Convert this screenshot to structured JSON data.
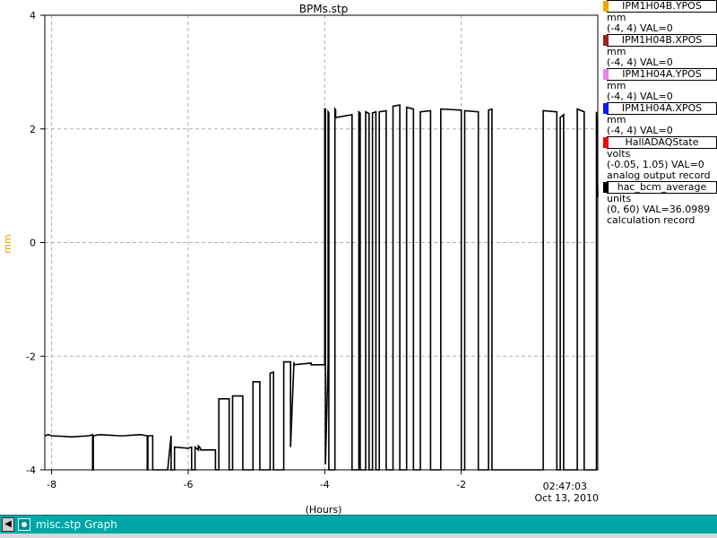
{
  "chart_data": {
    "type": "line",
    "title": "BPMs.stp",
    "xlabel": "(Hours)",
    "ylabel": "mm",
    "xlim": [
      -8.1,
      0
    ],
    "ylim": [
      -4,
      4
    ],
    "x_ticks": [
      "-8",
      "-6",
      "-4",
      "-2"
    ],
    "x_tick_values": [
      -8,
      -6,
      -4,
      -2
    ],
    "y_ticks": [
      "4",
      "2",
      "0",
      "-2",
      "-4"
    ],
    "y_tick_values": [
      4,
      2,
      0,
      -2,
      -4
    ],
    "end_time": "02:47:03",
    "end_date": "Oct 13, 2010",
    "grid": true,
    "series": [
      {
        "name": "hac_bcm_average",
        "color": "#000000",
        "x": [
          -8.1,
          -8.05,
          -8.0,
          -7.7,
          -7.45,
          -7.4,
          -7.4,
          -7.39,
          -7.39,
          -7.3,
          -7.0,
          -6.95,
          -6.7,
          -6.6,
          -6.6,
          -6.59,
          -6.59,
          -6.52,
          -6.52,
          -6.3,
          -6.25,
          -6.25,
          -6.2,
          -6.2,
          -6.0,
          -5.95,
          -5.95,
          -5.9,
          -5.9,
          -5.85,
          -5.85,
          -5.82,
          -5.82,
          -5.6,
          -5.6,
          -5.55,
          -5.55,
          -5.4,
          -5.4,
          -5.35,
          -5.35,
          -5.2,
          -5.2,
          -5.05,
          -5.05,
          -4.95,
          -4.95,
          -4.8,
          -4.8,
          -4.75,
          -4.75,
          -4.6,
          -4.6,
          -4.5,
          -4.5,
          -4.45,
          -4.45,
          -4.2,
          -4.2,
          -4.0,
          -4.0,
          -3.99,
          -3.99,
          -3.95,
          -3.95,
          -3.94,
          -3.94,
          -3.85,
          -3.85,
          -3.84,
          -3.84,
          -3.6,
          -3.6,
          -3.5,
          -3.5,
          -3.48,
          -3.48,
          -3.4,
          -3.4,
          -3.35,
          -3.35,
          -3.3,
          -3.3,
          -3.25,
          -3.25,
          -3.2,
          -3.2,
          -3.1,
          -3.1,
          -3.0,
          -3.0,
          -2.9,
          -2.9,
          -2.8,
          -2.8,
          -2.7,
          -2.7,
          -2.6,
          -2.6,
          -2.45,
          -2.45,
          -2.3,
          -2.3,
          -2.0,
          -2.0,
          -1.95,
          -1.95,
          -1.75,
          -1.75,
          -1.6,
          -1.6,
          -1.55,
          -1.55,
          -0.8,
          -0.8,
          -0.6,
          -0.6,
          -0.55,
          -0.55,
          -0.5,
          -0.5,
          -0.3,
          -0.3,
          -0.2,
          -0.2,
          -0.02,
          -0.02,
          0.0
        ],
        "y": [
          -3.4,
          -3.38,
          -3.4,
          -3.42,
          -3.4,
          -3.38,
          -4.0,
          -4.0,
          -3.4,
          -3.38,
          -3.4,
          -3.4,
          -3.38,
          -3.4,
          -4.0,
          -4.0,
          -3.4,
          -3.4,
          -4.0,
          -4.0,
          -3.4,
          -4.0,
          -4.0,
          -3.6,
          -3.62,
          -3.6,
          -4.0,
          -4.0,
          -3.6,
          -3.65,
          -3.58,
          -3.62,
          -3.65,
          -3.65,
          -4.0,
          -4.0,
          -2.75,
          -2.75,
          -4.0,
          -4.0,
          -2.7,
          -2.7,
          -4.0,
          -4.0,
          -2.45,
          -2.45,
          -4.0,
          -4.0,
          -2.3,
          -2.28,
          -4.0,
          -4.0,
          -2.1,
          -2.1,
          -3.6,
          -2.1,
          -2.15,
          -2.12,
          -2.15,
          -2.15,
          2.35,
          2.35,
          -3.9,
          -2.1,
          2.3,
          2.28,
          -4.0,
          -4.0,
          2.35,
          2.33,
          2.2,
          2.25,
          -4.0,
          -4.0,
          2.3,
          2.28,
          -4.0,
          -4.0,
          2.3,
          2.27,
          -4.0,
          -4.0,
          2.28,
          2.3,
          -4.0,
          -4.0,
          2.3,
          2.32,
          -4.0,
          -4.0,
          2.4,
          2.42,
          -4.0,
          -4.0,
          2.38,
          2.35,
          -4.0,
          -4.0,
          2.3,
          2.32,
          -4.0,
          -4.0,
          2.35,
          2.33,
          -4.0,
          -4.0,
          2.32,
          2.3,
          -4.0,
          -4.0,
          2.33,
          2.35,
          -4.0,
          -4.0,
          2.32,
          2.3,
          -4.0,
          -4.0,
          2.2,
          2.25,
          -4.0,
          -4.0,
          2.35,
          2.3,
          -4.0,
          -4.0,
          2.3,
          0.8
        ]
      }
    ]
  },
  "legend": {
    "items": [
      {
        "name": "IPM1H04B.YPOS",
        "color": "#f0a800",
        "unit": "mm",
        "range": "(-4, 4) VAL=0",
        "extra": ""
      },
      {
        "name": "IPM1H04B.XPOS",
        "color": "#a02020",
        "unit": "mm",
        "range": "(-4, 4) VAL=0",
        "extra": ""
      },
      {
        "name": "IPM1H04A.YPOS",
        "color": "#f080f0",
        "unit": "mm",
        "range": "(-4, 4) VAL=0",
        "extra": ""
      },
      {
        "name": "IPM1H04A.XPOS",
        "color": "#0018ff",
        "unit": "mm",
        "range": "(-4, 4) VAL=0",
        "extra": ""
      },
      {
        "name": "HallADAQState",
        "color": "#ff0000",
        "unit": "volts",
        "range": "(-0.05, 1.05) VAL=0",
        "extra": "analog output record"
      },
      {
        "name": "hac_bcm_average",
        "color": "#000000",
        "unit": "units",
        "range": "(0, 60) VAL=36.0989",
        "extra": "calculation record"
      }
    ]
  },
  "taskbar": {
    "title": "misc.stp  Graph"
  },
  "colors": {
    "axis_label": "#e8a000",
    "grid": "#b0b0b0",
    "taskbar": "#00a6a6"
  }
}
